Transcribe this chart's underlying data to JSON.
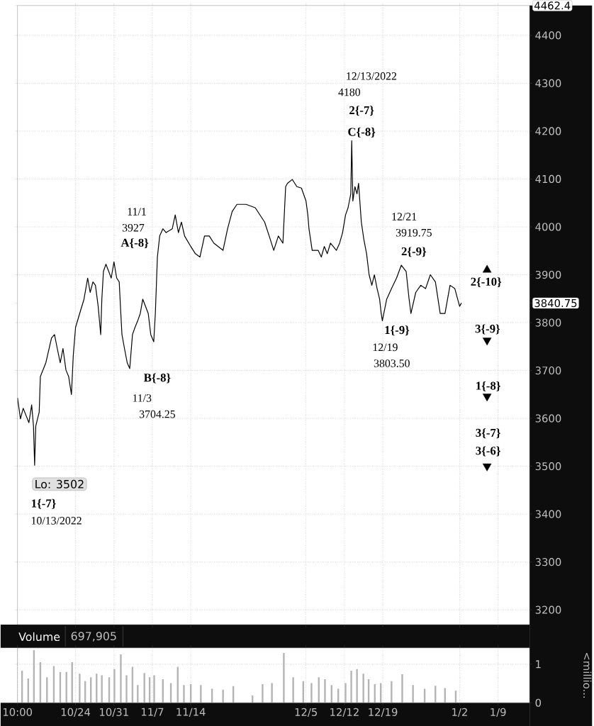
{
  "chart_data": [
    {
      "type": "line",
      "grid": true,
      "tick_labels": "y",
      "xlim": [
        "2022-10-13T10:00",
        "2023-01-14T18:00"
      ],
      "ylim": [
        3169,
        4462.4
      ],
      "xticks": [
        {
          "value": "2022-10-24",
          "label": null
        },
        {
          "value": "2022-10-31",
          "label": null
        },
        {
          "value": "2022-11-07",
          "label": null
        },
        {
          "value": "2022-11-14",
          "label": null
        },
        {
          "value": "2022-12-05",
          "label": null
        },
        {
          "value": "2022-12-12",
          "label": null
        },
        {
          "value": "2022-12-19",
          "label": null
        },
        {
          "value": "2023-01-02",
          "label": null
        },
        {
          "value": "2023-01-09",
          "label": null
        }
      ],
      "yticks": [
        3200,
        3300,
        3400,
        3500,
        3600,
        3700,
        3800,
        3900,
        4000,
        4100,
        4200,
        4300,
        4400,
        {
          "value": 3840.75,
          "label": "3840.75"
        },
        {
          "value": 4462.4,
          "label": "4462.4"
        }
      ],
      "series": [
        {
          "type": "line",
          "color": "#000000",
          "x": [
            "2022-10-13T10:00",
            "2022-10-13T23:00",
            "2022-10-14T11:00",
            "2022-10-15T12:00",
            "2022-10-16T00:00",
            "2022-10-16T08:00",
            "2022-10-16T13:00",
            "2022-10-16T18:00",
            "2022-10-17T09:00",
            "2022-10-17T14:00",
            "2022-10-18T14:00",
            "2022-10-19T15:00",
            "2022-10-20T04:00",
            "2022-10-20T16:00",
            "2022-10-21T05:00",
            "2022-10-21T17:00",
            "2022-10-22T06:00",
            "2022-10-22T18:00",
            "2022-10-23T06:00",
            "2022-10-23T14:00",
            "2022-10-24T00:00",
            "2022-10-24T18:00",
            "2022-10-25T13:00",
            "2022-10-26T05:00",
            "2022-10-26T16:00",
            "2022-10-27T04:00",
            "2022-10-27T15:00",
            "2022-10-28T03:00",
            "2022-10-28T14:00",
            "2022-10-28T19:00",
            "2022-10-29T02:00",
            "2022-10-29T13:00",
            "2022-10-30T01:00",
            "2022-10-30T12:00",
            "2022-10-31T00:00",
            "2022-10-31T12:00",
            "2022-10-31T23:00",
            "2022-11-01T06:00",
            "2022-11-01T11:00",
            "2022-11-01T22:00",
            "2022-11-02T10:00",
            "2022-11-02T21:00",
            "2022-11-03T09:00",
            "2022-11-03T20:00",
            "2022-11-04T08:00",
            "2022-11-04T19:00",
            "2022-11-05T06:00",
            "2022-11-05T18:00",
            "2022-11-06T06:00",
            "2022-11-06T17:00",
            "2022-11-07T06:00",
            "2022-11-07T13:00",
            "2022-11-07T22:00",
            "2022-11-08T08:00",
            "2022-11-08T22:00",
            "2022-11-09T12:00",
            "2022-11-10T15:00",
            "2022-11-11T04:00",
            "2022-11-11T18:00",
            "2022-11-12T07:00",
            "2022-11-12T21:00",
            "2022-11-14T00:00",
            "2022-11-14T20:00",
            "2022-11-15T16:00",
            "2022-11-16T12:00",
            "2022-11-17T09:00",
            "2022-11-18T05:00",
            "2022-11-19T21:00",
            "2022-11-20T17:00",
            "2022-11-21T13:00",
            "2022-11-22T10:00",
            "2022-11-24T02:00",
            "2022-11-25T18:00",
            "2022-11-27T11:00",
            "2022-11-28T07:00",
            "2022-11-29T03:00",
            "2022-11-29T23:00",
            "2022-11-30T19:00",
            "2022-12-01T07:00",
            "2022-12-01T15:00",
            "2022-12-02T12:00",
            "2022-12-03T08:00",
            "2022-12-04T04:00",
            "2022-12-05T00:00",
            "2022-12-05T08:00",
            "2022-12-05T13:00",
            "2022-12-06T03:00",
            "2022-12-07T05:00",
            "2022-12-07T19:00",
            "2022-12-08T08:00",
            "2022-12-08T21:00",
            "2022-12-09T11:00",
            "2022-12-10T13:00",
            "2022-12-11T03:00",
            "2022-12-11T16:00",
            "2022-12-12T05:00",
            "2022-12-12T16:00",
            "2022-12-13T04:00",
            "2022-12-13T08:00",
            "2022-12-13T13:00",
            "2022-12-13T22:00",
            "2022-12-14T07:00",
            "2022-12-14T14:00",
            "2022-12-15T02:00",
            "2022-12-15T13:00",
            "2022-12-16T01:00",
            "2022-12-16T12:00",
            "2022-12-17T00:00",
            "2022-12-17T11:00",
            "2022-12-17T23:00",
            "2022-12-18T10:00",
            "2022-12-18T17:00",
            "2022-12-18T22:00",
            "2022-12-19T17:00",
            "2022-12-20T14:00",
            "2022-12-21T12:00",
            "2022-12-22T09:00",
            "2022-12-23T06:00",
            "2022-12-23T19:00",
            "2022-12-24T03:00",
            "2022-12-25T00:00",
            "2022-12-25T22:00",
            "2022-12-26T19:00",
            "2022-12-27T16:00",
            "2022-12-28T14:00",
            "2022-12-29T11:00",
            "2022-12-30T08:00",
            "2022-12-31T06:00",
            "2023-01-01T03:00",
            "2023-01-02T00:00",
            "2023-01-02T08:00"
          ],
          "values": [
            3643,
            3599,
            3621,
            3591,
            3628,
            3584,
            3502,
            3584,
            3613,
            3687,
            3716,
            3768,
            3775,
            3746,
            3716,
            3746,
            3701,
            3687,
            3650,
            3731,
            3790,
            3819,
            3849,
            3893,
            3863,
            3885,
            3878,
            3834,
            3775,
            3849,
            3907,
            3922,
            3907,
            3893,
            3927,
            3893,
            3885,
            3819,
            3775,
            3746,
            3716,
            3704,
            3775,
            3790,
            3804,
            3819,
            3849,
            3834,
            3819,
            3775,
            3760,
            3819,
            3937,
            3981,
            3996,
            3988,
            3996,
            4025,
            3988,
            4010,
            3981,
            3959,
            3944,
            3937,
            3981,
            3981,
            3966,
            3951,
            3996,
            4032,
            4047,
            4047,
            4040,
            4010,
            3981,
            3951,
            3981,
            3966,
            4084,
            4091,
            4099,
            4084,
            4081,
            4054,
            4025,
            3996,
            3951,
            3951,
            3937,
            3959,
            3944,
            3966,
            3951,
            3966,
            3988,
            4025,
            4040,
            4069,
            4180,
            4054,
            4084,
            4069,
            4091,
            4010,
            3974,
            3944,
            3900,
            3878,
            3900,
            3871,
            3849,
            3819,
            3804,
            3849,
            3871,
            3893,
            3920,
            3907,
            3849,
            3819,
            3863,
            3878,
            3871,
            3900,
            3885,
            3819,
            3819,
            3878,
            3871,
            3834,
            3841
          ]
        },
        {
          "type": "scatter",
          "marker": "triangle",
          "color": "#000000",
          "x": [
            "2023-01-07T00:00"
          ],
          "values": [
            3910
          ]
        },
        {
          "type": "scatter",
          "marker": "triangle-down",
          "color": "#000000",
          "x": [
            "2023-01-07T00:00",
            "2023-01-07T00:00",
            "2023-01-07T00:00"
          ],
          "values": [
            3763,
            3646,
            3500
          ]
        }
      ],
      "annotations": [
        "2{-7}",
        "C{-8}",
        "A{-8}",
        "B{-8}",
        "1{-7}",
        "2{-9}",
        "1{-9}",
        "2{-10}",
        "3{-9}",
        "1{-8}",
        "3{-7}",
        "3{-6}",
        "Lo: 3502",
        "12/13/2022",
        "4180",
        "11/1",
        "3927",
        "11/3",
        "3704.25",
        "10/13/2022",
        "12/21",
        "3919.75",
        "12/19",
        "3803.50"
      ]
    },
    {
      "type": "bar",
      "title": "Volume",
      "subtitle": "697,905",
      "ylabel": "<millio...",
      "color": "#b4b4b4",
      "grid": true,
      "xlim": [
        "2022-10-13T10:00",
        "2023-01-14T18:00"
      ],
      "ylim": [
        0,
        1.42
      ],
      "yticks": [
        0,
        1
      ],
      "xticks": [
        {
          "value": "2022-10-13T10:00",
          "label": "10:00"
        },
        {
          "value": "2022-10-24",
          "label": "10/24"
        },
        {
          "value": "2022-10-31",
          "label": "10/31"
        },
        {
          "value": "2022-11-07",
          "label": "11/7"
        },
        {
          "value": "2022-11-14",
          "label": "11/14"
        },
        {
          "value": "2022-12-05",
          "label": "12/5"
        },
        {
          "value": "2022-12-12",
          "label": "12/12"
        },
        {
          "value": "2022-12-19",
          "label": "12/19"
        },
        {
          "value": "2023-01-02",
          "label": "1/2"
        },
        {
          "value": "2023-01-09",
          "label": "1/9"
        }
      ],
      "x": [
        "2022-10-14T06:00",
        "2022-10-15T09:00",
        "2022-10-16T10:00",
        "2022-10-17T14:00",
        "2022-10-18T19:00",
        "2022-10-20T01:00",
        "2022-10-21T05:00",
        "2022-10-22T08:00",
        "2022-10-23T09:00",
        "2022-10-24T18:00",
        "2022-10-25T18:00",
        "2022-10-26T19:00",
        "2022-10-27T20:00",
        "2022-10-28T19:00",
        "2022-10-30T03:00",
        "2022-10-31T02:00",
        "2022-11-01T06:00",
        "2022-11-02T07:00",
        "2022-11-03T09:00",
        "2022-11-04T08:00",
        "2022-11-05T13:00",
        "2022-11-06T12:00",
        "2022-11-07T08:00",
        "2022-11-08T22:00",
        "2022-11-10T09:00",
        "2022-11-11T15:00",
        "2022-11-12T18:00",
        "2022-11-14T00:00",
        "2022-11-15T20:00",
        "2022-11-17T21:00",
        "2022-11-19T21:00",
        "2022-11-21T18:00",
        "2022-11-25T06:00",
        "2022-11-27T02:00",
        "2022-11-28T19:00",
        "2022-11-30T23:00",
        "2022-12-02T16:00",
        "2022-12-04T12:00",
        "2022-12-06T00:00",
        "2022-12-07T08:00",
        "2022-12-08T11:00",
        "2022-12-09T16:00",
        "2022-12-10T21:00",
        "2022-12-12T05:00",
        "2022-12-13T06:00",
        "2022-12-14T07:00",
        "2022-12-15T11:00",
        "2022-12-16T10:00",
        "2022-12-17T13:00",
        "2022-12-18T15:00",
        "2022-12-20T14:00",
        "2022-12-22T13:00",
        "2022-12-24T12:00",
        "2022-12-26T15:00",
        "2022-12-28T14:00",
        "2022-12-30T08:00",
        "2023-01-01T07:00"
      ],
      "values": [
        0.83,
        0.63,
        1.36,
        1.05,
        0.66,
        0.95,
        0.8,
        0.8,
        1.05,
        0.75,
        0.56,
        0.66,
        0.75,
        0.71,
        0.66,
        0.87,
        1.25,
        0.71,
        0.93,
        0.46,
        0.77,
        0.66,
        0.71,
        0.61,
        0.51,
        0.93,
        0.46,
        0.48,
        0.46,
        0.36,
        0.34,
        0.43,
        0.19,
        0.48,
        0.51,
        1.29,
        0.66,
        0.56,
        0.51,
        0.66,
        0.61,
        0.46,
        0.36,
        0.51,
        0.83,
        0.87,
        0.75,
        0.61,
        0.48,
        0.51,
        0.56,
        0.74,
        0.46,
        0.36,
        0.44,
        0.38,
        0.31
      ]
    }
  ]
}
